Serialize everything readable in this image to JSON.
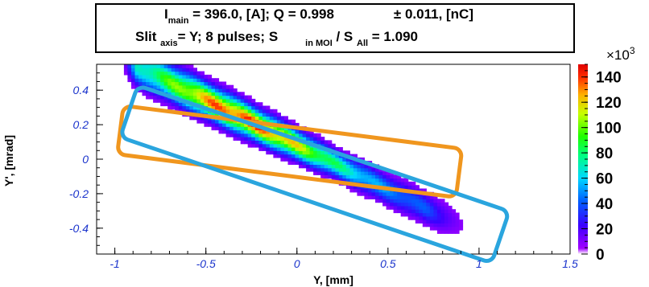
{
  "header": {
    "line1": {
      "i_label": "I",
      "i_sub": "main",
      "i_rest": " = 396.0, [A];  Q = 0.998",
      "q_err": "± 0.011, [nC]"
    },
    "line2": {
      "slit": "Slit ",
      "slit_sub": "axis",
      "slit_rest": "= Y;    8 pulses;    S",
      "s_sub1": "in MOI",
      "s_mid": " / S ",
      "s_sub2": "All",
      "s_rest": "  =  1.090"
    }
  },
  "chart_data": {
    "type": "heatmap",
    "xlabel": "Y, [mm]",
    "ylabel": "Y', [mrad]",
    "xlim": [
      -1.1,
      1.5
    ],
    "ylim": [
      -0.55,
      0.55
    ],
    "x_ticks": [
      -1,
      -0.5,
      0,
      0.5,
      1,
      1.5
    ],
    "x_tick_labels": [
      "-1",
      "-0.5",
      "0",
      "0.5",
      "1",
      "1.5"
    ],
    "y_ticks": [
      0.4,
      0.2,
      0,
      -0.2,
      -0.4
    ],
    "y_tick_labels": [
      "0.4",
      "0.2",
      "0",
      "-0.2",
      "-0.4"
    ],
    "colorbar": {
      "exponent_label": "×10",
      "exponent_power": "3",
      "range": [
        0,
        150
      ],
      "ticks": [
        140,
        120,
        100,
        80,
        60,
        40,
        20,
        0
      ],
      "tick_labels": [
        "140",
        "120",
        "100",
        "80",
        "60",
        "40",
        "20",
        "0"
      ]
    },
    "distribution": {
      "slope": -0.52,
      "intercept": 0.07,
      "y_range": [
        -0.97,
        0.95
      ],
      "spread_base": 0.05,
      "peak_x": -0.3,
      "peak_value": 150
    },
    "overlays": [
      {
        "name": "orange-rectangle",
        "color": "#f0961e",
        "corners": [
          [
            -0.95,
            0.31
          ],
          [
            0.91,
            0.06
          ],
          [
            0.87,
            -0.22
          ],
          [
            -0.99,
            0.03
          ]
        ]
      },
      {
        "name": "blue-rectangle",
        "color": "#2aa5de",
        "corners": [
          [
            -0.86,
            0.42
          ],
          [
            1.18,
            -0.31
          ],
          [
            1.06,
            -0.6
          ],
          [
            -0.99,
            0.14
          ]
        ]
      }
    ]
  }
}
